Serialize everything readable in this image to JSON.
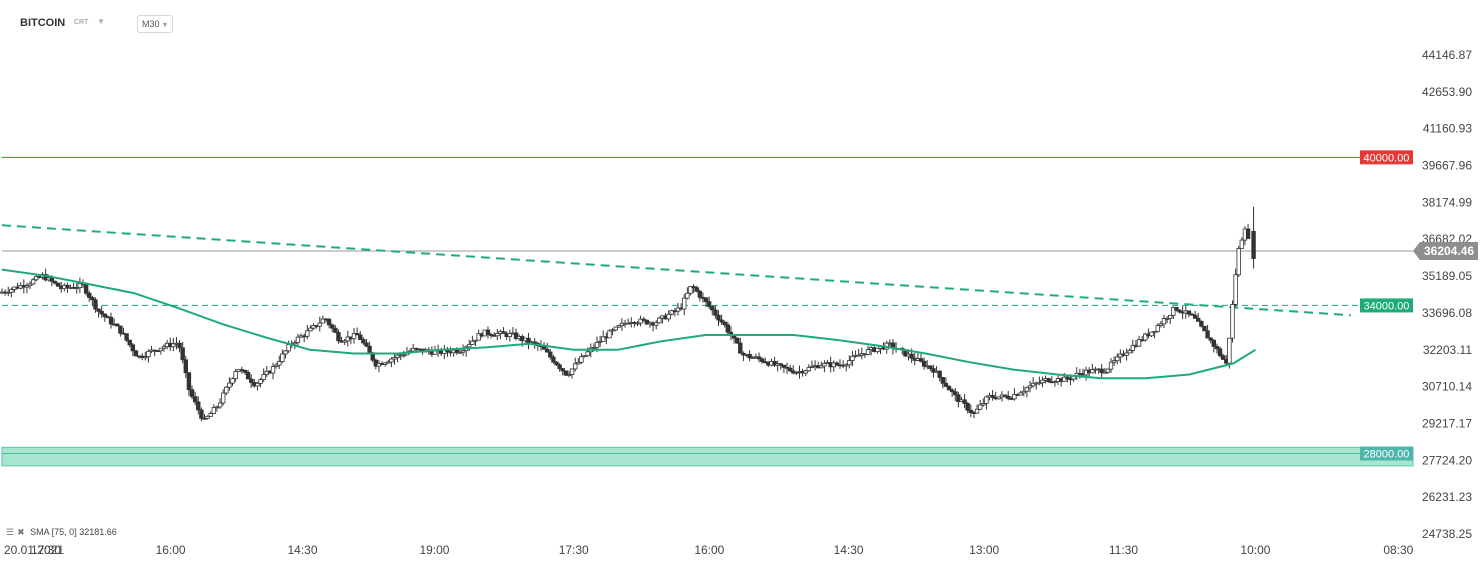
{
  "header": {
    "symbol": "BITCOIN",
    "type_label": "CRT",
    "timeframe": "M30"
  },
  "indicator": {
    "label": "SMA",
    "params": "[75, 0]",
    "value": "32181.66"
  },
  "chart_data": {
    "type": "candlestick",
    "yticks": [
      "44146.87",
      "42653.90",
      "41160.93",
      "39667.96",
      "38174.99",
      "36682.02",
      "35189.05",
      "33696.08",
      "32203.11",
      "30710.14",
      "29217.17",
      "27724.20",
      "26231.23",
      "24738.25"
    ],
    "ytick_values": [
      44146.87,
      42653.9,
      41160.93,
      39667.96,
      38174.99,
      36682.02,
      35189.05,
      33696.08,
      32203.11,
      30710.14,
      29217.17,
      27724.2,
      26231.23,
      24738.25
    ],
    "xticks": [
      "20.01.2021",
      "17:30",
      "16:00",
      "14:30",
      "19:00",
      "17:30",
      "16:00",
      "14:30",
      "13:00",
      "11:30",
      "10:00",
      "08:30"
    ],
    "xtick_pos": [
      0,
      1.2,
      4.6,
      8.2,
      11.8,
      15.6,
      19.3,
      23.1,
      26.8,
      30.6,
      34.2,
      38.1
    ],
    "x_range": [
      0,
      38.5
    ],
    "levels": [
      {
        "value": 40000.0,
        "label": "40000.00",
        "color": "#e53935"
      },
      {
        "value": 34000.0,
        "label": "34000.00",
        "color": "#1dab77"
      },
      {
        "value": 28000.0,
        "label": "28000.00",
        "color": "#4db6ac"
      }
    ],
    "support_zone": [
      27500,
      28250
    ],
    "current_price": {
      "value": 36204.46,
      "label": "36204.46"
    },
    "trendline": {
      "start": {
        "x": 0,
        "y": 37250
      },
      "end": {
        "x": 36.8,
        "y": 33600
      }
    },
    "sma_points": [
      [
        0,
        35450
      ],
      [
        1.2,
        35200
      ],
      [
        2.4,
        34850
      ],
      [
        3.6,
        34500
      ],
      [
        4.8,
        33900
      ],
      [
        6,
        33250
      ],
      [
        7.2,
        32700
      ],
      [
        8.4,
        32200
      ],
      [
        9.6,
        32050
      ],
      [
        10.8,
        32050
      ],
      [
        12,
        32200
      ],
      [
        13.2,
        32300
      ],
      [
        14.4,
        32450
      ],
      [
        15.6,
        32200
      ],
      [
        16.8,
        32200
      ],
      [
        18,
        32550
      ],
      [
        19.2,
        32800
      ],
      [
        20.4,
        32800
      ],
      [
        21.6,
        32800
      ],
      [
        22.8,
        32600
      ],
      [
        24,
        32350
      ],
      [
        25.2,
        32050
      ],
      [
        26.4,
        31700
      ],
      [
        27.6,
        31400
      ],
      [
        28.8,
        31200
      ],
      [
        30,
        31050
      ],
      [
        31.2,
        31050
      ],
      [
        32.4,
        31200
      ],
      [
        33.6,
        31650
      ],
      [
        34.2,
        32200
      ]
    ],
    "price_path": [
      [
        0,
        34500
      ],
      [
        0.8,
        34900
      ],
      [
        1.2,
        35200
      ],
      [
        1.7,
        34700
      ],
      [
        2.3,
        34800
      ],
      [
        2.7,
        33800
      ],
      [
        3.3,
        33000
      ],
      [
        3.8,
        31900
      ],
      [
        4.4,
        32300
      ],
      [
        4.9,
        32500
      ],
      [
        5.2,
        30500
      ],
      [
        5.6,
        29300
      ],
      [
        6.0,
        30000
      ],
      [
        6.5,
        31500
      ],
      [
        7.0,
        30800
      ],
      [
        7.5,
        31500
      ],
      [
        8.0,
        32500
      ],
      [
        8.5,
        33000
      ],
      [
        8.9,
        33500
      ],
      [
        9.3,
        32600
      ],
      [
        9.8,
        32800
      ],
      [
        10.3,
        31600
      ],
      [
        10.8,
        31900
      ],
      [
        11.3,
        32200
      ],
      [
        12.0,
        32100
      ],
      [
        12.6,
        32200
      ],
      [
        13.2,
        32900
      ],
      [
        14.0,
        32800
      ],
      [
        14.8,
        32300
      ],
      [
        15.5,
        31200
      ],
      [
        16.0,
        32000
      ],
      [
        16.5,
        32700
      ],
      [
        17.2,
        33400
      ],
      [
        17.9,
        33300
      ],
      [
        18.6,
        33900
      ],
      [
        18.9,
        34800
      ],
      [
        19.3,
        34100
      ],
      [
        19.8,
        33200
      ],
      [
        20.3,
        32000
      ],
      [
        20.8,
        31800
      ],
      [
        21.3,
        31500
      ],
      [
        21.8,
        31300
      ],
      [
        22.4,
        31600
      ],
      [
        23.0,
        31600
      ],
      [
        23.6,
        32100
      ],
      [
        24.3,
        32400
      ],
      [
        24.9,
        31900
      ],
      [
        25.5,
        31400
      ],
      [
        26.1,
        30300
      ],
      [
        26.6,
        29600
      ],
      [
        27.0,
        30300
      ],
      [
        27.6,
        30300
      ],
      [
        28.1,
        30700
      ],
      [
        28.6,
        31000
      ],
      [
        29.1,
        31000
      ],
      [
        29.6,
        31300
      ],
      [
        30.2,
        31400
      ],
      [
        30.8,
        32200
      ],
      [
        31.5,
        33000
      ],
      [
        32.1,
        33900
      ],
      [
        32.6,
        33500
      ],
      [
        33.1,
        32500
      ],
      [
        33.5,
        31600
      ],
      [
        33.8,
        36100
      ],
      [
        34.0,
        37200
      ],
      [
        34.15,
        36200
      ]
    ],
    "last_candle_high": 38000,
    "ylim": [
      24738.25,
      44700
    ]
  },
  "colors": {
    "candle_up": "#ffffff",
    "candle_down": "#333333",
    "sma": "#1dab77",
    "trend": "#1dab77",
    "resistance": "#e53935",
    "support_fill": "#a8e6cf",
    "price_tag": "#8e8e8e"
  }
}
